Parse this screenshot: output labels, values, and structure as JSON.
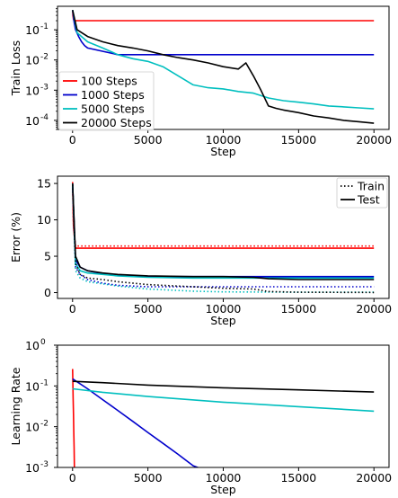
{
  "chart_data": [
    {
      "type": "line",
      "xlabel": "Step",
      "ylabel": "Train Loss",
      "yscale": "log",
      "xlim": [
        -1000,
        21000
      ],
      "ylim": [
        5e-05,
        0.6
      ],
      "xticks": [
        0,
        5000,
        10000,
        15000,
        20000
      ],
      "xtick_labels": [
        "0",
        "5000",
        "10000",
        "15000",
        "20000"
      ],
      "yticks": [
        0.0001,
        0.001,
        0.01,
        0.1
      ],
      "ytick_labels": [
        "10",
        "10",
        "10",
        "10"
      ],
      "ytick_exponents": [
        "-4",
        "-3",
        "-2",
        "-1"
      ],
      "legend": "lower-left",
      "grid": false,
      "series": [
        {
          "name": "100 Steps",
          "color": "#ff0000",
          "x": [
            0,
            20,
            60,
            100,
            200,
            20000
          ],
          "y": [
            0.45,
            0.3,
            0.22,
            0.2,
            0.2,
            0.2
          ]
        },
        {
          "name": "1000 Steps",
          "color": "#0000cc",
          "x": [
            0,
            100,
            200,
            400,
            600,
            800,
            1000,
            3000,
            20000
          ],
          "y": [
            0.45,
            0.18,
            0.1,
            0.06,
            0.04,
            0.03,
            0.025,
            0.015,
            0.015
          ]
        },
        {
          "name": "5000 Steps",
          "color": "#00bfbf",
          "x": [
            0,
            300,
            1000,
            2000,
            3000,
            4000,
            5000,
            6000,
            7000,
            8000,
            9000,
            10000,
            11000,
            12000,
            13000,
            14000,
            15000,
            16000,
            17000,
            18000,
            19000,
            20000
          ],
          "y": [
            0.45,
            0.08,
            0.04,
            0.025,
            0.015,
            0.011,
            0.009,
            0.006,
            0.003,
            0.0015,
            0.0012,
            0.0011,
            0.0009,
            0.0008,
            0.00055,
            0.00045,
            0.0004,
            0.00035,
            0.0003,
            0.00028,
            0.00026,
            0.00024
          ]
        },
        {
          "name": "20000 Steps",
          "color": "#000000",
          "x": [
            0,
            300,
            1000,
            2000,
            3000,
            4000,
            5000,
            6000,
            7000,
            8000,
            9000,
            10000,
            11000,
            11500,
            12000,
            12500,
            13000,
            13500,
            14000,
            15000,
            16000,
            17000,
            18000,
            19000,
            20000
          ],
          "y": [
            0.45,
            0.1,
            0.06,
            0.04,
            0.03,
            0.025,
            0.02,
            0.015,
            0.012,
            0.01,
            0.008,
            0.006,
            0.005,
            0.008,
            0.003,
            0.001,
            0.0003,
            0.00025,
            0.00022,
            0.00018,
            0.00014,
            0.00012,
            0.0001,
            9e-05,
            8e-05
          ]
        }
      ]
    },
    {
      "type": "line",
      "xlabel": "Step",
      "ylabel": "Error (%)",
      "xlim": [
        -1000,
        21000
      ],
      "ylim": [
        -0.8,
        16
      ],
      "xticks": [
        0,
        5000,
        10000,
        15000,
        20000
      ],
      "xtick_labels": [
        "0",
        "5000",
        "10000",
        "15000",
        "20000"
      ],
      "yticks": [
        0,
        5,
        10,
        15
      ],
      "ytick_labels": [
        "0",
        "5",
        "10",
        "15"
      ],
      "legend": "top-right",
      "grid": false,
      "legend_entries": [
        {
          "name": "Train",
          "style": "dotted"
        },
        {
          "name": "Test",
          "style": "solid"
        }
      ],
      "series": [
        {
          "color": "#ff0000",
          "style": "solid",
          "x": [
            0,
            60,
            200,
            20000
          ],
          "y": [
            15.2,
            9,
            6.1,
            6.1
          ]
        },
        {
          "color": "#ff0000",
          "style": "dotted",
          "x": [
            0,
            60,
            200,
            20000
          ],
          "y": [
            15.0,
            9,
            6.4,
            6.4
          ]
        },
        {
          "color": "#0000cc",
          "style": "solid",
          "x": [
            0,
            200,
            500,
            1000,
            2000,
            3000,
            5000,
            10000,
            20000
          ],
          "y": [
            15,
            4.5,
            3.5,
            3.0,
            2.6,
            2.4,
            2.2,
            2.2,
            2.2
          ]
        },
        {
          "color": "#0000cc",
          "style": "dotted",
          "x": [
            0,
            200,
            500,
            1000,
            2000,
            3000,
            5000,
            10000,
            20000
          ],
          "y": [
            14.5,
            3.5,
            2.5,
            1.8,
            1.3,
            1.0,
            0.8,
            0.8,
            0.8
          ]
        },
        {
          "color": "#00bfbf",
          "style": "solid",
          "x": [
            0,
            200,
            500,
            1000,
            3000,
            5000,
            8000,
            10000,
            15000,
            20000
          ],
          "y": [
            15,
            4.0,
            3.0,
            2.7,
            2.3,
            2.1,
            2.0,
            2.0,
            2.0,
            2.0
          ]
        },
        {
          "color": "#00bfbf",
          "style": "dotted",
          "x": [
            0,
            200,
            500,
            1000,
            3000,
            5000,
            8000,
            10000,
            15000,
            20000
          ],
          "y": [
            14.8,
            3.0,
            2.0,
            1.5,
            0.9,
            0.5,
            0.2,
            0.1,
            0.05,
            0.05
          ]
        },
        {
          "color": "#000000",
          "style": "solid",
          "x": [
            0,
            200,
            500,
            1000,
            2000,
            3000,
            5000,
            8000,
            10000,
            12000,
            13000,
            15000,
            20000
          ],
          "y": [
            15,
            5.0,
            3.5,
            3.0,
            2.7,
            2.5,
            2.3,
            2.2,
            2.2,
            2.1,
            1.9,
            1.8,
            1.8
          ]
        },
        {
          "color": "#000000",
          "style": "dotted",
          "x": [
            0,
            200,
            500,
            1000,
            2000,
            3000,
            5000,
            8000,
            10000,
            12000,
            13000,
            15000,
            20000
          ],
          "y": [
            14.8,
            4.0,
            2.5,
            2.0,
            1.8,
            1.5,
            1.1,
            0.8,
            0.6,
            0.5,
            0.15,
            0.05,
            0.02
          ]
        }
      ]
    },
    {
      "type": "line",
      "xlabel": "Step",
      "ylabel": "Learning Rate",
      "yscale": "log",
      "xlim": [
        -1000,
        21000
      ],
      "ylim": [
        0.001,
        1
      ],
      "xticks": [
        0,
        5000,
        10000,
        15000,
        20000
      ],
      "xtick_labels": [
        "0",
        "5000",
        "10000",
        "15000",
        "20000"
      ],
      "yticks": [
        0.001,
        0.01,
        0.1,
        1
      ],
      "ytick_labels": [
        "10",
        "10",
        "10",
        "10"
      ],
      "ytick_exponents": [
        "-3",
        "-2",
        "-1",
        "0"
      ],
      "grid": false,
      "series": [
        {
          "color": "#ff0000",
          "x": [
            0,
            20,
            40,
            60,
            80,
            100,
            120
          ],
          "y": [
            0.26,
            0.12,
            0.05,
            0.02,
            0.008,
            0.003,
            0.001
          ]
        },
        {
          "color": "#0000cc",
          "x": [
            0,
            1000,
            2000,
            3000,
            4000,
            5000,
            6000,
            7000,
            8000,
            9000
          ],
          "y": [
            0.15,
            0.085,
            0.046,
            0.025,
            0.0135,
            0.0072,
            0.0039,
            0.0021,
            0.0011,
            0.0008
          ]
        },
        {
          "color": "#00bfbf",
          "x": [
            0,
            2000,
            5000,
            10000,
            15000,
            20000
          ],
          "y": [
            0.085,
            0.07,
            0.055,
            0.04,
            0.031,
            0.024
          ]
        },
        {
          "color": "#000000",
          "x": [
            0,
            2000,
            5000,
            10000,
            15000,
            20000
          ],
          "y": [
            0.13,
            0.12,
            0.105,
            0.09,
            0.08,
            0.071
          ]
        }
      ]
    }
  ]
}
